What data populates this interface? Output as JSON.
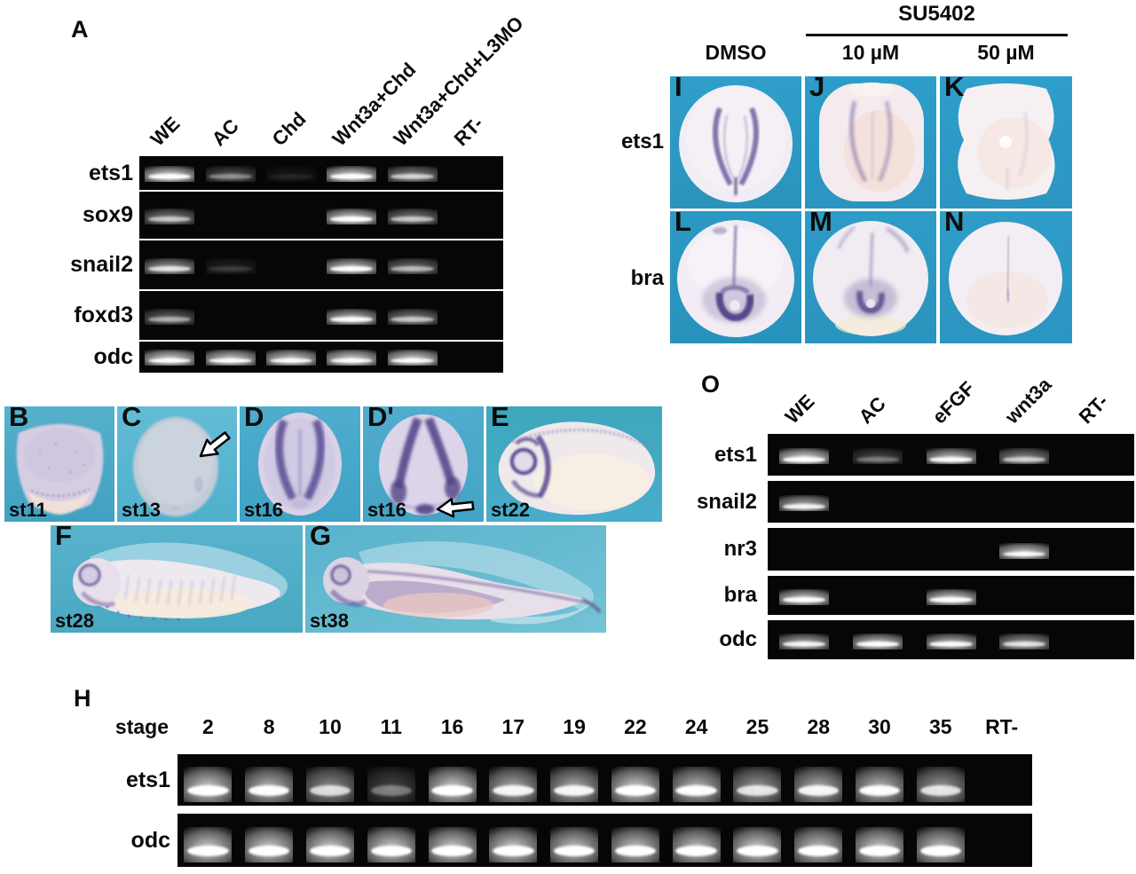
{
  "colors": {
    "page_background": "#ffffff",
    "gel_background": "#060606",
    "band_white": "#ffffff",
    "embryo_panel_blue": "#3aa5c8",
    "stain_purple": "#5c5095",
    "text_black": "#0b0b0b"
  },
  "gel_panels": {
    "panelA": {
      "label": "A",
      "lanes": [
        "WE",
        "AC",
        "Chd",
        "Wnt3a+Chd",
        "Wnt3a+Chd+L3MO",
        "RT-"
      ],
      "rows": [
        {
          "gene": "ets1",
          "bands": [
            1.0,
            0.35,
            0.07,
            1.0,
            0.6,
            0
          ]
        },
        {
          "gene": "sox9",
          "bands": [
            0.55,
            0,
            0,
            0.95,
            0.55,
            0
          ]
        },
        {
          "gene": "snail2",
          "bands": [
            0.7,
            0.12,
            0,
            0.9,
            0.5,
            0
          ]
        },
        {
          "gene": "foxd3",
          "bands": [
            0.45,
            0,
            0,
            0.85,
            0.55,
            0
          ]
        },
        {
          "gene": "odc",
          "bands": [
            1.0,
            0.95,
            0.95,
            1.0,
            1.0,
            0
          ]
        }
      ]
    },
    "panelO": {
      "label": "O",
      "lanes": [
        "WE",
        "AC",
        "eFGF",
        "wnt3a",
        "RT-"
      ],
      "rows": [
        {
          "gene": "ets1",
          "bands": [
            1.0,
            0.3,
            0.85,
            0.6,
            0
          ]
        },
        {
          "gene": "snail2",
          "bands": [
            0.8,
            0,
            0,
            0,
            0
          ]
        },
        {
          "gene": "nr3",
          "bands": [
            0,
            0,
            0,
            0.95,
            0
          ]
        },
        {
          "gene": "bra",
          "bands": [
            0.95,
            0,
            0.95,
            0,
            0
          ]
        },
        {
          "gene": "odc",
          "bands": [
            0.8,
            0.9,
            0.85,
            0.7,
            0
          ]
        }
      ]
    },
    "panelH": {
      "label": "H",
      "lane_header": "stage",
      "lanes": [
        "2",
        "8",
        "10",
        "11",
        "16",
        "17",
        "19",
        "22",
        "24",
        "25",
        "28",
        "30",
        "35",
        "RT-"
      ],
      "rows": [
        {
          "gene": "ets1",
          "bands": [
            0.95,
            0.85,
            0.65,
            0.3,
            0.95,
            0.8,
            0.8,
            0.95,
            0.85,
            0.7,
            0.8,
            0.85,
            0.7,
            0
          ]
        },
        {
          "gene": "odc",
          "bands": [
            0.95,
            0.95,
            0.95,
            0.95,
            0.95,
            0.95,
            0.9,
            0.9,
            0.9,
            0.95,
            0.9,
            0.95,
            0.9,
            0
          ]
        }
      ]
    }
  },
  "embryo_panels": {
    "row1": [
      {
        "letter": "B",
        "stage": "st11",
        "arrow": false
      },
      {
        "letter": "C",
        "stage": "st13",
        "arrow": true
      },
      {
        "letter": "D",
        "stage": "st16",
        "arrow": false
      },
      {
        "letter": "D'",
        "stage": "st16",
        "arrow": true
      },
      {
        "letter": "E",
        "stage": "st22",
        "arrow": false
      }
    ],
    "row2": [
      {
        "letter": "F",
        "stage": "st28",
        "arrow": false
      },
      {
        "letter": "G",
        "stage": "st38",
        "arrow": false
      }
    ]
  },
  "su5402_panel": {
    "header": "SU5402",
    "columns": [
      "DMSO",
      "10 µM",
      "50 µM"
    ],
    "row_labels": [
      "ets1",
      "bra"
    ],
    "cells": [
      {
        "letter": "I"
      },
      {
        "letter": "J"
      },
      {
        "letter": "K"
      },
      {
        "letter": "L"
      },
      {
        "letter": "M"
      },
      {
        "letter": "N"
      }
    ]
  }
}
